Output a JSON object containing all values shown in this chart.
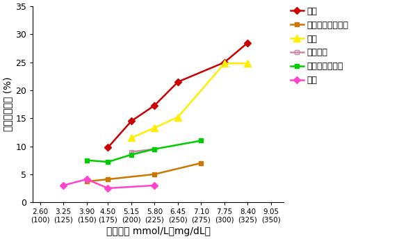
{
  "series": [
    {
      "name": "北欧",
      "color": "#cc0000",
      "marker": "D",
      "marker_face": "#cc0000",
      "marker_edge": "#cc0000",
      "x": [
        4.5,
        5.15,
        5.8,
        6.45,
        7.75,
        8.4
      ],
      "y": [
        9.8,
        14.5,
        17.3,
        21.5,
        25.0,
        28.5
      ]
    },
    {
      "name": "南欧，地中海地区",
      "color": "#cc7700",
      "marker": "s",
      "marker_face": "#cc7700",
      "marker_edge": "#cc7700",
      "x": [
        3.9,
        4.5,
        5.8,
        7.1
      ],
      "y": [
        3.7,
        4.1,
        5.0,
        7.0
      ]
    },
    {
      "name": "美国",
      "color": "#ffee00",
      "marker": "^",
      "marker_face": "#ffee00",
      "marker_edge": "#ffee00",
      "x": [
        5.15,
        5.8,
        6.45,
        7.75,
        8.4
      ],
      "y": [
        11.5,
        13.3,
        15.2,
        24.8,
        24.8
      ]
    },
    {
      "name": "塞尔维亚",
      "color": "#cc88aa",
      "marker": "s",
      "marker_face": "none",
      "marker_edge": "#cc88aa",
      "x": [
        5.15,
        5.8
      ],
      "y": [
        9.0,
        9.5
      ]
    },
    {
      "name": "南欧，内陆地区",
      "color": "#00cc00",
      "marker": "s",
      "marker_face": "#00cc00",
      "marker_edge": "#00cc00",
      "x": [
        3.9,
        4.5,
        5.15,
        5.8,
        7.1
      ],
      "y": [
        7.5,
        7.2,
        8.5,
        9.5,
        11.0
      ]
    },
    {
      "name": "日本",
      "color": "#ff44cc",
      "marker": "D",
      "marker_face": "#ff44cc",
      "marker_edge": "#ff44cc",
      "x": [
        3.25,
        3.9,
        4.5,
        5.8
      ],
      "y": [
        3.0,
        4.1,
        2.5,
        3.0
      ]
    }
  ],
  "xticks": [
    2.6,
    3.25,
    3.9,
    4.5,
    5.15,
    5.8,
    6.45,
    7.1,
    7.75,
    8.4,
    9.05
  ],
  "xtick_top": [
    "2.60",
    "3.25",
    "3.90",
    "4.50",
    "5.15",
    "5.80",
    "6.45",
    "7.10",
    "7.75",
    "8.40",
    "9.05"
  ],
  "xtick_bot": [
    "(100)",
    "(125)",
    "(150)",
    "(175)",
    "(200)",
    "(225)",
    "(250)",
    "(275)",
    "(300)",
    "(325)",
    "(350)"
  ],
  "yticks": [
    0,
    5,
    10,
    15,
    20,
    25,
    30,
    35
  ],
  "ylim": [
    0,
    35
  ],
  "xlim": [
    2.4,
    9.4
  ],
  "xlabel": "血胆固醇 mmol/L（mg/dL）",
  "ylabel": "冠心病死亡率 (%)",
  "legend_names": [
    "北欧",
    "南欧，地中海地区",
    "美国",
    "塞尔维亚",
    "南欧，内陆地区",
    "日本"
  ],
  "bg_color": "#ffffff"
}
